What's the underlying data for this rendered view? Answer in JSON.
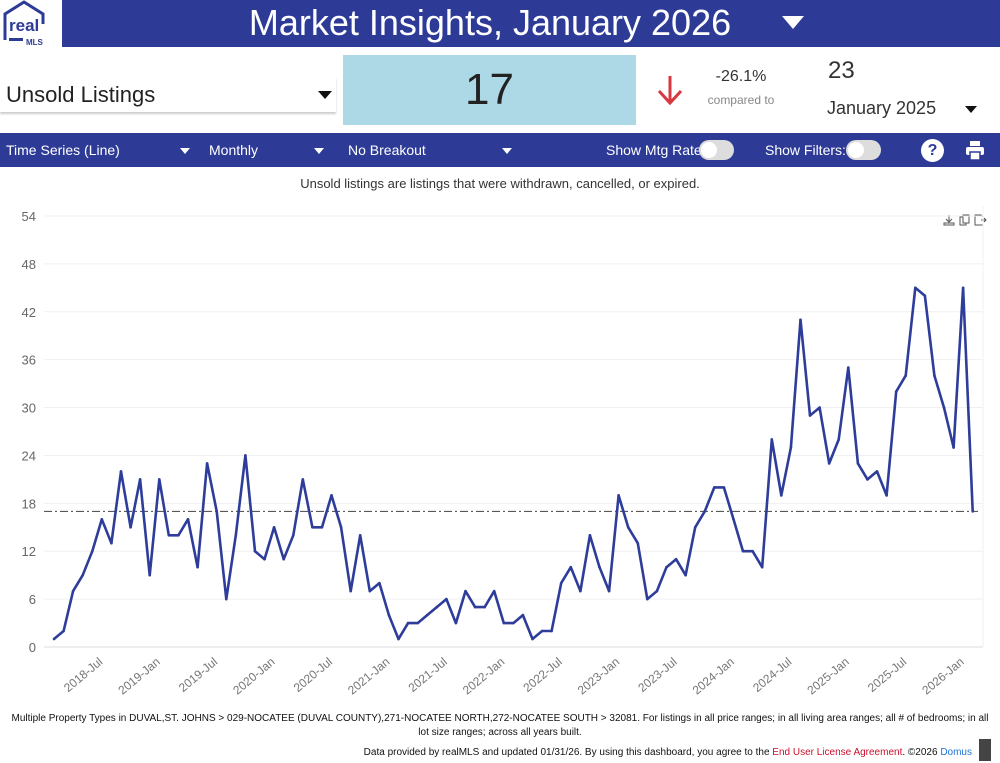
{
  "header": {
    "title": "Market Insights, January 2026",
    "logo_text": "real MLS"
  },
  "metric": {
    "selected": "Unsold Listings",
    "value": "17",
    "change_pct": "-26.1%",
    "compared_label": "compared to",
    "previous_value": "23",
    "previous_period": "January 2025",
    "trend": "down",
    "trend_color": "#d9373f"
  },
  "toolbar": {
    "chart_type": "Time Series (Line)",
    "interval": "Monthly",
    "breakout": "No Breakout",
    "show_mtg_rate_label": "Show Mtg Rate:",
    "show_mtg_rate": false,
    "show_filters_label": "Show Filters:",
    "show_filters": false,
    "help": "?"
  },
  "caption": "Unsold listings are listings that were withdrawn, cancelled, or expired.",
  "chart_data": {
    "type": "line",
    "start": "2018-01",
    "interval": "monthly",
    "values": [
      1,
      2,
      7,
      9,
      12,
      16,
      13,
      22,
      15,
      21,
      9,
      21,
      14,
      14,
      16,
      10,
      23,
      17,
      6,
      14,
      24,
      12,
      11,
      15,
      11,
      14,
      21,
      15,
      15,
      19,
      15,
      7,
      14,
      7,
      8,
      4,
      1,
      3,
      3,
      4,
      5,
      6,
      3,
      7,
      5,
      5,
      7,
      3,
      3,
      4,
      1,
      2,
      2,
      8,
      10,
      7,
      14,
      10,
      7,
      19,
      15,
      13,
      6,
      7,
      10,
      11,
      9,
      15,
      17,
      20,
      20,
      16,
      12,
      12,
      10,
      26,
      19,
      25,
      41,
      29,
      30,
      23,
      26,
      35,
      23,
      21,
      22,
      19,
      32,
      34,
      45,
      44,
      34,
      30,
      25,
      45,
      17
    ],
    "reference_line": 17,
    "ylim": [
      0,
      54
    ],
    "yticks": [
      "0",
      "6",
      "12",
      "18",
      "24",
      "30",
      "36",
      "42",
      "48",
      "54"
    ],
    "xticks": [
      "2018-Jul",
      "2019-Jan",
      "2019-Jul",
      "2020-Jan",
      "2020-Jul",
      "2021-Jan",
      "2021-Jul",
      "2022-Jan",
      "2022-Jul",
      "2023-Jan",
      "2023-Jul",
      "2024-Jan",
      "2024-Jul",
      "2025-Jan",
      "2025-Jul",
      "2026-Jan"
    ],
    "grid": true,
    "line_color": "#2e3d9a"
  },
  "footer": {
    "filters": "Multiple Property Types in DUVAL,ST. JOHNS > 029-NOCATEE (DUVAL COUNTY),271-NOCATEE NORTH,272-NOCATEE SOUTH > 32081. For listings in all price ranges; in all living area ranges; all # of bedrooms; in all lot size ranges; across all years built.",
    "provided": "Data provided by realMLS and updated 01/31/26.  By using this dashboard, you agree to the ",
    "license_link": "End User License Agreement",
    "copyright": ".  ©2026 ",
    "domus_link": "Domus"
  }
}
